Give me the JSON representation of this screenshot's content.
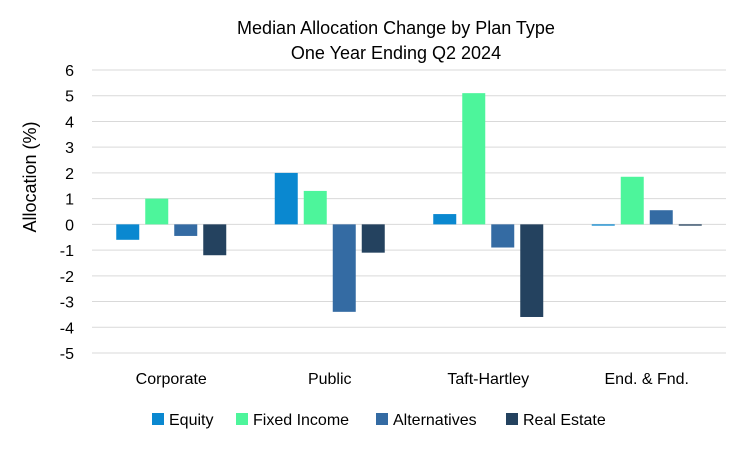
{
  "chart_data": {
    "type": "bar",
    "title": "Median Allocation Change by Plan Type",
    "subtitle": "One Year Ending Q2 2024",
    "xlabel": "",
    "ylabel": "Allocation (%)",
    "ylim": [
      -5,
      6
    ],
    "yticks": [
      -5,
      -4,
      -3,
      -2,
      -1,
      0,
      1,
      2,
      3,
      4,
      5,
      6
    ],
    "grid": true,
    "legend_position": "bottom",
    "categories": [
      "Corporate",
      "Public",
      "Taft-Hartley",
      "End. & Fnd."
    ],
    "series": [
      {
        "name": "Equity",
        "color": "#0a88d0",
        "values": [
          -0.6,
          2.0,
          0.4,
          -0.05
        ]
      },
      {
        "name": "Fixed Income",
        "color": "#4df59b",
        "values": [
          1.0,
          1.3,
          5.1,
          1.85
        ]
      },
      {
        "name": "Alternatives",
        "color": "#346ba3",
        "values": [
          -0.45,
          -3.4,
          -0.9,
          0.55
        ]
      },
      {
        "name": "Real Estate",
        "color": "#24425f",
        "values": [
          -1.2,
          -1.1,
          -3.6,
          -0.05
        ]
      }
    ]
  }
}
